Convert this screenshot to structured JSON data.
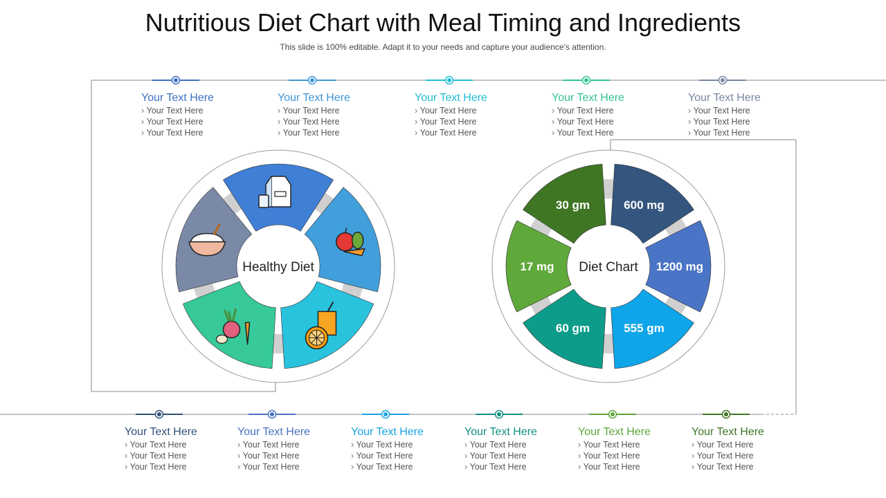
{
  "title": "Nutritious Diet Chart with Meal Timing and Ingredients",
  "subtitle": "This slide is 100% editable. Adapt it to your needs and capture your audience's attention.",
  "left_wheel": {
    "center_label": "Healthy Diet",
    "segments": [
      {
        "icon": "milk-carton-icon",
        "color": "#3F7FD6"
      },
      {
        "icon": "fruits-vegetables-icon",
        "color": "#419FDB"
      },
      {
        "icon": "juice-glass-icon",
        "color": "#29C3DE"
      },
      {
        "icon": "root-vegetables-icon",
        "color": "#37C99A"
      },
      {
        "icon": "rice-bowl-icon",
        "color": "#7A89A6"
      }
    ]
  },
  "right_wheel": {
    "center_label": "Diet Chart",
    "segments": [
      {
        "value": "600 mg",
        "color": "#34567E"
      },
      {
        "value": "1200 mg",
        "color": "#4A74C6"
      },
      {
        "value": "555 gm",
        "color": "#0EA5E9"
      },
      {
        "value": "60 gm",
        "color": "#0E9C8A"
      },
      {
        "value": "17 mg",
        "color": "#5FA83A"
      },
      {
        "value": "30 gm",
        "color": "#3F7624"
      }
    ]
  },
  "top_blocks": [
    {
      "heading": "Your Text Here",
      "items": [
        "Your Text Here",
        "Your Text Here",
        "Your Text Here"
      ],
      "color": "#3E6FC4"
    },
    {
      "heading": "Your Text Here",
      "items": [
        "Your Text Here",
        "Your Text Here",
        "Your Text Here"
      ],
      "color": "#3C97D6"
    },
    {
      "heading": "Your Text Here",
      "items": [
        "Your Text Here",
        "Your Text Here",
        "Your Text Here"
      ],
      "color": "#22BCD5"
    },
    {
      "heading": "Your Text Here",
      "items": [
        "Your Text Here",
        "Your Text Here",
        "Your Text Here"
      ],
      "color": "#34C290"
    },
    {
      "heading": "Your Text Here",
      "items": [
        "Your Text Here",
        "Your Text Here",
        "Your Text Here"
      ],
      "color": "#7886A2"
    }
  ],
  "bottom_blocks": [
    {
      "heading": "Your Text Here",
      "items": [
        "Your Text Here",
        "Your Text Here",
        "Your Text Here"
      ],
      "color": "#2F4F78"
    },
    {
      "heading": "Your Text Here",
      "items": [
        "Your Text Here",
        "Your Text Here",
        "Your Text Here"
      ],
      "color": "#4770C0"
    },
    {
      "heading": "Your Text Here",
      "items": [
        "Your Text Here",
        "Your Text Here",
        "Your Text Here"
      ],
      "color": "#1AA3E0"
    },
    {
      "heading": "Your Text Here",
      "items": [
        "Your Text Here",
        "Your Text Here",
        "Your Text Here"
      ],
      "color": "#0E8F82"
    },
    {
      "heading": "Your Text Here",
      "items": [
        "Your Text Here",
        "Your Text Here",
        "Your Text Here"
      ],
      "color": "#5CA43B"
    },
    {
      "heading": "Your Text Here",
      "items": [
        "Your Text Here",
        "Your Text Here",
        "Your Text Here"
      ],
      "color": "#3E7425"
    }
  ]
}
